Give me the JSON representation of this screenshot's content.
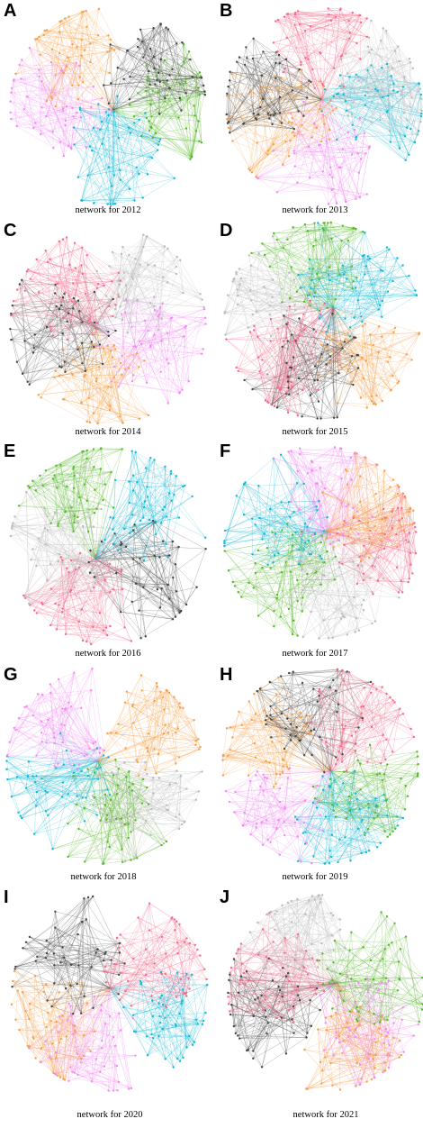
{
  "panels": [
    {
      "letter": "A",
      "caption": "network for 2012"
    },
    {
      "letter": "B",
      "caption": "network for 2013"
    },
    {
      "letter": "C",
      "caption": "network for 2014"
    },
    {
      "letter": "D",
      "caption": "network for 2015"
    },
    {
      "letter": "E",
      "caption": "network for 2016"
    },
    {
      "letter": "F",
      "caption": "network for 2017"
    },
    {
      "letter": "G",
      "caption": "network for 2018"
    },
    {
      "letter": "H",
      "caption": "network for 2019"
    },
    {
      "letter": "I",
      "caption": "network for 2020"
    },
    {
      "letter": "J",
      "caption": "network for 2021"
    }
  ]
}
